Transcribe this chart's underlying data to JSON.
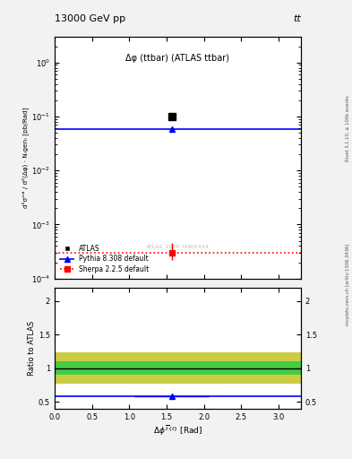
{
  "title_top_left": "13000 GeV pp",
  "title_top_right": "tt",
  "plot_title": "Δφ (ttbar) (ATLAS ttbar)",
  "watermark": "ATLAS_2020_I1801434",
  "rivet_label": "Rivet 3.1.10, ≥ 100k events",
  "arxiv_label": "mcplots.cern.ch [arXiv:1306.3436]",
  "ylabel_main": "d²σ^fid / d²(Δφ) cdot N_gen [pb/Rad]",
  "ylabel_ratio": "Ratio to ATLAS",
  "xlabel": "Δφ^{tbar{t}} [Rad]",
  "xlim": [
    0,
    3.3
  ],
  "ylim_main": [
    0.0001,
    3.0
  ],
  "ylim_ratio": [
    0.4,
    2.2
  ],
  "atlas_x": [
    1.57
  ],
  "atlas_y": [
    0.1
  ],
  "pythia_y": 0.058,
  "sherpa_y": 0.0003,
  "sherpa_yerr_lo": 0.00022,
  "sherpa_yerr_hi": 0.00045,
  "ratio_pythia_y": 0.585,
  "ratio_band_green_lo": 0.9,
  "ratio_band_green_hi": 1.1,
  "ratio_band_yellow_lo": 0.77,
  "ratio_band_yellow_hi": 1.23,
  "bg_color": "#f2f2f2",
  "plot_bg_color": "#ffffff",
  "blue_color": "#0000ff",
  "red_color": "#ff0000",
  "black_color": "#000000",
  "green_band_color": "#44cc44",
  "yellow_band_color": "#cccc44",
  "legend_atlas": "ATLAS",
  "legend_pythia": "Pythia 8.308 default",
  "legend_sherpa": "Sherpa 2.2.5 default"
}
